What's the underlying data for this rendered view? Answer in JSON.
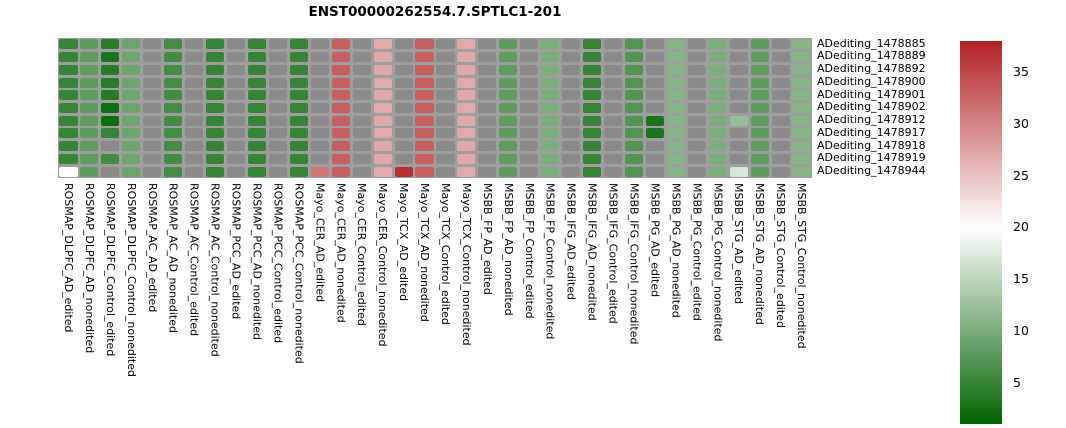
{
  "title": "ENST00000262554.7.SPTLC1-201",
  "chart_data": {
    "type": "heatmap",
    "title": "ENST00000262554.7.SPTLC1-201",
    "rows": [
      "ADediting_1478885",
      "ADediting_1478889",
      "ADediting_1478892",
      "ADediting_1478900",
      "ADediting_1478901",
      "ADediting_1478902",
      "ADediting_1478912",
      "ADediting_1478917",
      "ADediting_1478918",
      "ADediting_1478919",
      "ADediting_1478944"
    ],
    "columns": [
      "ROSMAP_DLPFC_AD_edited",
      "ROSMAP_DLPFC_AD_nonedited",
      "ROSMAP_DLPFC_Control_edited",
      "ROSMAP_DLPFC_Control_nonedited",
      "ROSMAP_AC_AD_edited",
      "ROSMAP_AC_AD_nonedited",
      "ROSMAP_AC_Control_edited",
      "ROSMAP_AC_Control_nonedited",
      "ROSMAP_PCC_AD_edited",
      "ROSMAP_PCC_AD_nonedited",
      "ROSMAP_PCC_Control_edited",
      "ROSMAP_PCC_Control_nonedited",
      "Mayo_CER_AD_edited",
      "Mayo_CER_AD_nonedited",
      "Mayo_CER_Control_edited",
      "Mayo_CER_Control_nonedited",
      "Mayo_TCX_AD_edited",
      "Mayo_TCX_AD_nonedited",
      "Mayo_TCX_Control_edited",
      "Mayo_TCX_Control_nonedited",
      "MSBB_FP_AD_edited",
      "MSBB_FP_AD_nonedited",
      "MSBB_FP_Control_edited",
      "MSBB_FP_Control_nonedited",
      "MSBB_IFG_AD_edited",
      "MSBB_IFG_AD_nonedited",
      "MSBB_IFG_Control_edited",
      "MSBB_IFG_Control_nonedited",
      "MSBB_PG_AD_edited",
      "MSBB_PG_AD_nonedited",
      "MSBB_PG_Control_edited",
      "MSBB_PG_Control_nonedited",
      "MSBB_STG_AD_edited",
      "MSBB_STG_AD_nonedited",
      "MSBB_STG_Control_edited",
      "MSBB_STG_Control_nonedited"
    ],
    "values": [
      [
        5,
        8,
        4,
        9,
        null,
        6,
        null,
        5,
        null,
        5,
        null,
        5,
        null,
        33,
        null,
        27,
        null,
        33,
        null,
        27,
        null,
        8,
        null,
        10,
        null,
        5,
        null,
        7,
        null,
        11,
        null,
        10,
        null,
        8,
        null,
        11
      ],
      [
        5,
        8,
        3,
        9,
        null,
        6,
        null,
        5,
        null,
        5,
        null,
        5,
        null,
        33,
        null,
        27,
        null,
        33,
        null,
        27,
        null,
        8,
        null,
        10,
        null,
        5,
        null,
        7,
        null,
        11,
        null,
        10,
        null,
        8,
        null,
        11
      ],
      [
        5,
        8,
        4,
        9,
        null,
        6,
        null,
        5,
        null,
        5,
        null,
        5,
        null,
        33,
        null,
        27,
        null,
        33,
        null,
        27,
        null,
        8,
        null,
        10,
        null,
        5,
        null,
        7,
        null,
        11,
        null,
        10,
        null,
        8,
        null,
        11
      ],
      [
        5,
        8,
        4,
        9,
        null,
        6,
        null,
        5,
        null,
        5,
        null,
        5,
        null,
        33,
        null,
        27,
        null,
        33,
        null,
        27,
        null,
        8,
        null,
        10,
        null,
        5,
        null,
        7,
        null,
        11,
        null,
        10,
        null,
        8,
        null,
        11
      ],
      [
        5,
        8,
        4,
        9,
        null,
        6,
        null,
        5,
        null,
        5,
        null,
        5,
        null,
        33,
        null,
        27,
        null,
        33,
        null,
        27,
        null,
        8,
        null,
        10,
        null,
        5,
        null,
        7,
        null,
        11,
        null,
        10,
        null,
        8,
        null,
        11
      ],
      [
        5,
        8,
        2,
        9,
        null,
        6,
        null,
        5,
        null,
        5,
        null,
        5,
        null,
        33,
        null,
        27,
        null,
        33,
        null,
        27,
        null,
        8,
        null,
        10,
        null,
        5,
        null,
        7,
        null,
        11,
        null,
        10,
        null,
        8,
        null,
        11
      ],
      [
        5,
        8,
        2,
        9,
        null,
        6,
        null,
        5,
        null,
        5,
        null,
        5,
        null,
        33,
        null,
        27,
        null,
        33,
        null,
        27,
        null,
        8,
        null,
        10,
        null,
        5,
        null,
        7,
        3,
        11,
        null,
        10,
        12,
        8,
        null,
        11
      ],
      [
        5,
        8,
        5,
        9,
        null,
        6,
        null,
        5,
        null,
        5,
        null,
        5,
        null,
        33,
        null,
        27,
        null,
        33,
        null,
        27,
        null,
        8,
        null,
        10,
        null,
        5,
        null,
        7,
        3,
        11,
        null,
        10,
        null,
        8,
        null,
        11
      ],
      [
        5,
        8,
        null,
        9,
        null,
        6,
        null,
        5,
        null,
        5,
        null,
        5,
        null,
        33,
        null,
        27,
        null,
        33,
        null,
        27,
        null,
        8,
        null,
        10,
        null,
        5,
        null,
        7,
        null,
        11,
        null,
        10,
        null,
        8,
        null,
        11
      ],
      [
        5,
        8,
        6,
        9,
        null,
        6,
        null,
        5,
        null,
        5,
        null,
        5,
        null,
        33,
        null,
        27,
        null,
        33,
        null,
        27,
        null,
        8,
        null,
        10,
        null,
        5,
        null,
        7,
        null,
        11,
        null,
        10,
        null,
        8,
        null,
        11
      ],
      [
        20,
        8,
        null,
        9,
        null,
        6,
        null,
        5,
        null,
        5,
        null,
        5,
        31,
        33,
        null,
        27,
        37,
        33,
        null,
        27,
        null,
        8,
        null,
        10,
        null,
        5,
        null,
        7,
        null,
        11,
        null,
        10,
        17,
        8,
        null,
        11
      ]
    ],
    "na_color": "#8a8a8a",
    "grid_background": "#9e9e9e",
    "colorscale": {
      "low_color": "#006400",
      "mid_color": "#ffffff",
      "high_color": "#b22222",
      "domain": [
        1,
        38
      ],
      "midpoint": 20,
      "ticks": [
        5,
        10,
        15,
        20,
        25,
        30,
        35
      ]
    },
    "legend_position": "right",
    "grid": false
  },
  "layout_note_colors": {
    "background": "#ffffff",
    "text": "#000000"
  }
}
